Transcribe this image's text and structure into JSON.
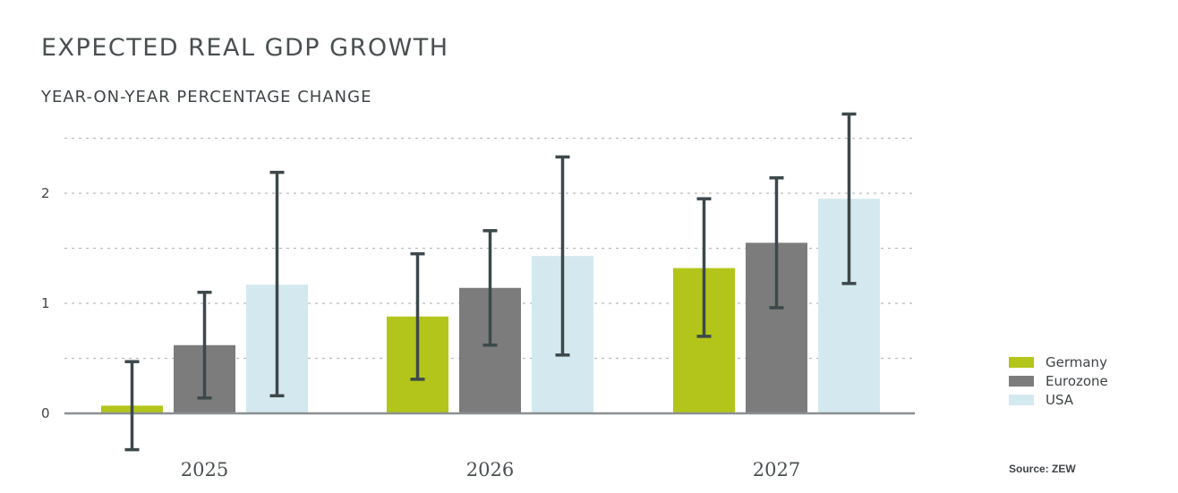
{
  "chart_data": {
    "type": "bar",
    "title": "EXPECTED REAL GDP GROWTH",
    "subtitle": "YEAR-ON-YEAR PERCENTAGE CHANGE",
    "categories": [
      "2025",
      "2026",
      "2027"
    ],
    "series": [
      {
        "name": "Germany",
        "color": "#b3c51a",
        "values": [
          0.07,
          0.88,
          1.32
        ],
        "err_low": [
          -0.33,
          0.31,
          0.7
        ],
        "err_high": [
          0.47,
          1.45,
          1.95
        ]
      },
      {
        "name": "Eurozone",
        "color": "#7c7c7c",
        "values": [
          0.62,
          1.14,
          1.55
        ],
        "err_low": [
          0.14,
          0.62,
          0.96
        ],
        "err_high": [
          1.1,
          1.66,
          2.14
        ]
      },
      {
        "name": "USA",
        "color": "#d4e9ef",
        "values": [
          1.17,
          1.43,
          1.95
        ],
        "err_low": [
          0.16,
          0.53,
          1.18
        ],
        "err_high": [
          2.19,
          2.33,
          2.72
        ]
      }
    ],
    "yticks": [
      "0",
      "1",
      "2"
    ],
    "ylim": [
      0,
      2.5
    ],
    "grid": true,
    "legend": "bottom-right",
    "error_bar_color": "#3d484b"
  },
  "source": "Source: ZEW"
}
